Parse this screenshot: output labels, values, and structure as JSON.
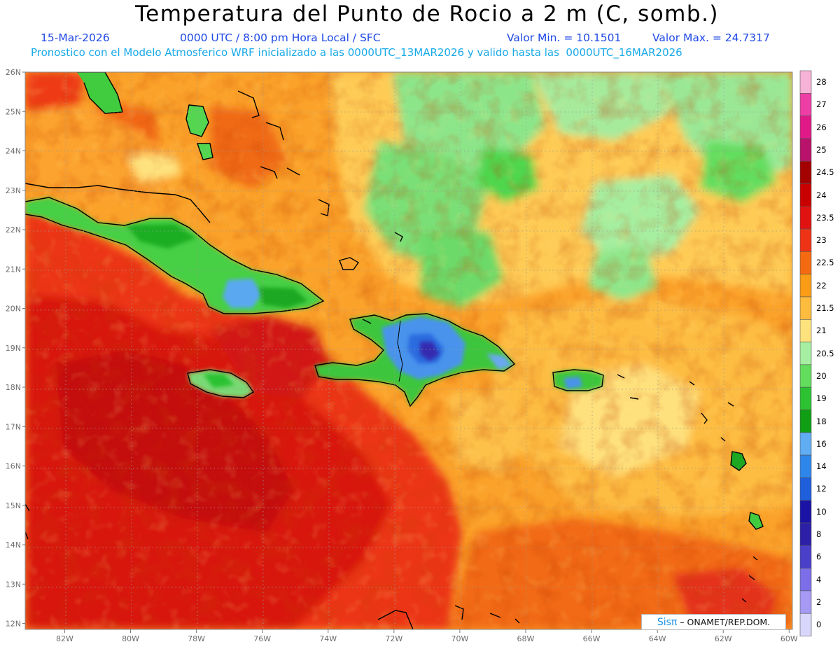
{
  "header": {
    "title": "Temperatura del Punto de Rocio a 2 m (C, somb.)",
    "date": "15-Mar-2026",
    "time": "0000 UTC / 8:00 pm Hora Local / SFC",
    "vmin": "Valor Min. = 10.1501",
    "vmax": "Valor Max. = 24.7317",
    "description": "Pronostico con el Modelo Atmosferico WRF inicializado a las 0000UTC_13MAR2026 y valido hasta las  0000UTC_16MAR2026"
  },
  "map": {
    "extent": {
      "lon_min": -83.2,
      "lon_max": -59.9,
      "lat_min": 11.85,
      "lat_max": 26.0
    },
    "lat_ticks": [
      "26N",
      "25N",
      "24N",
      "23N",
      "22N",
      "21N",
      "20N",
      "19N",
      "18N",
      "17N",
      "16N",
      "15N",
      "14N",
      "13N",
      "12N"
    ],
    "lon_ticks": [
      "82W",
      "80W",
      "78W",
      "76W",
      "74W",
      "72W",
      "70W",
      "68W",
      "66W",
      "64W",
      "62W",
      "60W"
    ],
    "grid": "dotted"
  },
  "colorbar": {
    "labels": [
      "28",
      "27",
      "26",
      "25",
      "24.5",
      "24",
      "23.5",
      "23",
      "22.5",
      "22",
      "21.5",
      "21",
      "20.5",
      "20",
      "19",
      "18",
      "16",
      "14",
      "12",
      "10",
      "8",
      "6",
      "4",
      "2",
      "0"
    ],
    "colors": [
      "#f6b2d7",
      "#ed3ea5",
      "#df1a88",
      "#b8126a",
      "#a30000",
      "#c90000",
      "#e01212",
      "#ee3316",
      "#f46a10",
      "#fa9c16",
      "#fdbc3e",
      "#fee27e",
      "#a6eea1",
      "#63dd5e",
      "#2cc232",
      "#0f9e14",
      "#60adf3",
      "#2f86ea",
      "#1f5fdc",
      "#1b12a6",
      "#2c1fa8",
      "#4a3fc8",
      "#7b6ee8",
      "#a69af4",
      "#d8d6fa"
    ]
  },
  "credit": {
    "brand": "Sisπ",
    "text": "– ONAMET/REP.DOM."
  }
}
